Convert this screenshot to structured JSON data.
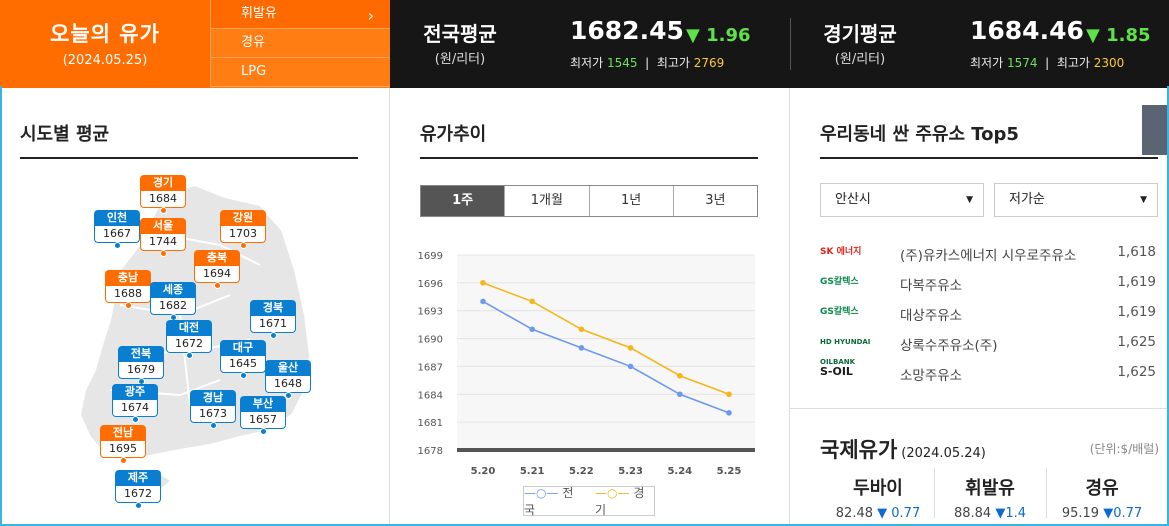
{
  "brand": {
    "title": "오늘의 유가",
    "date": "(2024.05.25)"
  },
  "fuel_menu": [
    {
      "label": "휘발유"
    },
    {
      "label": "경유"
    },
    {
      "label": "LPG"
    }
  ],
  "national": {
    "label": "전국평균",
    "unit": "(원/리터)",
    "price": "1682.45",
    "change": "▼ 1.96",
    "min_label": "최저가",
    "min": "1545",
    "max_label": "최고가",
    "max": "2769"
  },
  "gyeonggi": {
    "label": "경기평균",
    "unit": "(원/리터)",
    "price": "1684.46",
    "change": "▼ 1.85",
    "min_label": "최저가",
    "min": "1574",
    "max_label": "최고가",
    "max": "2300"
  },
  "region": {
    "title": "시도별 평균",
    "pins": [
      {
        "name": "경기",
        "value": "1684",
        "hl": true
      },
      {
        "name": "인천",
        "value": "1667",
        "hl": false
      },
      {
        "name": "서울",
        "value": "1744",
        "hl": true
      },
      {
        "name": "강원",
        "value": "1703",
        "hl": true
      },
      {
        "name": "충북",
        "value": "1694",
        "hl": true
      },
      {
        "name": "충남",
        "value": "1688",
        "hl": true
      },
      {
        "name": "세종",
        "value": "1682",
        "hl": false
      },
      {
        "name": "경북",
        "value": "1671",
        "hl": false
      },
      {
        "name": "대전",
        "value": "1672",
        "hl": false
      },
      {
        "name": "전북",
        "value": "1679",
        "hl": false
      },
      {
        "name": "대구",
        "value": "1645",
        "hl": false
      },
      {
        "name": "울산",
        "value": "1648",
        "hl": false
      },
      {
        "name": "광주",
        "value": "1674",
        "hl": false
      },
      {
        "name": "경남",
        "value": "1673",
        "hl": false
      },
      {
        "name": "부산",
        "value": "1657",
        "hl": false
      },
      {
        "name": "전남",
        "value": "1695",
        "hl": true
      },
      {
        "name": "제주",
        "value": "1672",
        "hl": false
      }
    ]
  },
  "trend": {
    "title": "유가추이",
    "tabs": [
      {
        "label": "1주"
      },
      {
        "label": "1개월"
      },
      {
        "label": "1년"
      },
      {
        "label": "3년"
      }
    ],
    "legend": {
      "a": "전국",
      "b": "경기"
    }
  },
  "chart_data": {
    "type": "line",
    "categories": [
      "5.20",
      "5.21",
      "5.22",
      "5.23",
      "5.24",
      "5.25"
    ],
    "ylim": [
      1678,
      1699
    ],
    "yticks": [
      1678,
      1681,
      1684,
      1687,
      1690,
      1693,
      1696,
      1699
    ],
    "grid": true,
    "series": [
      {
        "name": "전국",
        "values": [
          1694,
          1691,
          1689,
          1687,
          1684,
          1682
        ],
        "color": "#6d9af0"
      },
      {
        "name": "경기",
        "values": [
          1696,
          1694,
          1691,
          1689,
          1686,
          1684
        ],
        "color": "#f7b51a"
      }
    ]
  },
  "cheap": {
    "title": "우리동네 싼 주유소 Top5",
    "city": "안산시",
    "sort": "저가순",
    "stations": [
      {
        "logo": "SK 에너지",
        "name": "(주)유카스에너지 시우로주유소",
        "price": "1,618"
      },
      {
        "logo": "GS칼텍스",
        "name": "다복주유소",
        "price": "1,619"
      },
      {
        "logo": "GS칼텍스",
        "name": "대상주유소",
        "price": "1,619"
      },
      {
        "logo": "HD HYUNDAI OILBANK",
        "name": "상록수주유소(주)",
        "price": "1,625"
      },
      {
        "logo": "S-OIL",
        "name": "소망주유소",
        "price": "1,625"
      }
    ]
  },
  "intl": {
    "title": "국제유가",
    "date": "(2024.05.24)",
    "unit": "(단위:$/배럴)",
    "items": [
      {
        "name": "두바이",
        "value": "82.48",
        "change": "▼ 0.77"
      },
      {
        "name": "휘발유",
        "value": "88.84",
        "change": "▼1.4"
      },
      {
        "name": "경유",
        "value": "95.19",
        "change": "▼0.77"
      }
    ]
  }
}
